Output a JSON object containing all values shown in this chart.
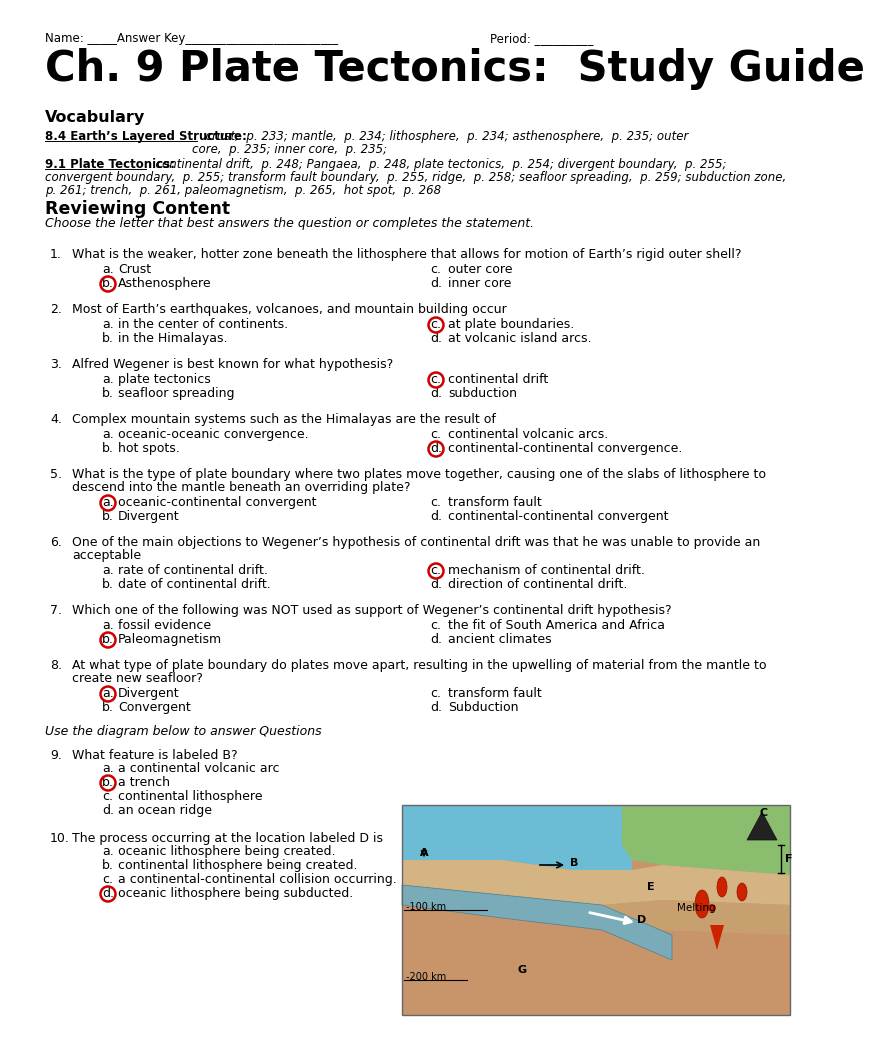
{
  "bg_color": "#ffffff",
  "title": "Ch. 9 Plate Tectonics:  Study Guide",
  "name_line_left": "Name: _____Answer Key__________________________",
  "name_line_right": "Period: __________",
  "vocab_header": "Vocabulary",
  "v1_bold": "8.4 Earth’s Layered Structure:",
  "v1_rest1": "  crust,  p. 233; mantle,  p. 234; lithosphere,  p. 234; asthenosphere,  p. 235; outer",
  "v1_rest2": "core,  p. 235; inner core,  p. 235;",
  "v2_bold": "9.1 Plate Tectonics:",
  "v2_rest1": "  continental drift,  p. 248; Pangaea,  p. 248, plate tectonics,  p. 254; divergent boundary,  p. 255;",
  "v2_rest2": "convergent boundary,  p. 255; transform fault boundary,  p. 255, ridge,  p. 258; seafloor spreading,  p. 259; subduction zone,",
  "v2_rest3": "p. 261; trench,  p. 261, paleomagnetism,  p. 265,  hot spot,  p. 268",
  "section2_header": "Reviewing Content",
  "section2_sub": "Choose the letter that best answers the question or completes the statement.",
  "questions": [
    {
      "num": "1.",
      "text": "What is the weaker, hotter zone beneath the lithosphere that allows for motion of Earth’s rigid outer shell?",
      "multiline": false,
      "answers": [
        {
          "label": "a.",
          "text": "Crust",
          "col": 0
        },
        {
          "label": "b.",
          "text": "Asthenosphere",
          "col": 0,
          "circled": true
        },
        {
          "label": "c.",
          "text": "outer core",
          "col": 1
        },
        {
          "label": "d.",
          "text": "inner core",
          "col": 1
        }
      ]
    },
    {
      "num": "2.",
      "text": "Most of Earth’s earthquakes, volcanoes, and mountain building occur",
      "multiline": false,
      "answers": [
        {
          "label": "a.",
          "text": "in the center of continents.",
          "col": 0
        },
        {
          "label": "b.",
          "text": "in the Himalayas.",
          "col": 0
        },
        {
          "label": "c.",
          "text": "at plate boundaries.",
          "col": 1,
          "circled": true
        },
        {
          "label": "d.",
          "text": "at volcanic island arcs.",
          "col": 1
        }
      ]
    },
    {
      "num": "3.",
      "text": "Alfred Wegener is best known for what hypothesis?",
      "multiline": false,
      "answers": [
        {
          "label": "a.",
          "text": "plate tectonics",
          "col": 0
        },
        {
          "label": "b.",
          "text": "seafloor spreading",
          "col": 0
        },
        {
          "label": "c.",
          "text": "continental drift",
          "col": 1,
          "circled": true
        },
        {
          "label": "d.",
          "text": "subduction",
          "col": 1
        }
      ]
    },
    {
      "num": "4.",
      "text": "Complex mountain systems such as the Himalayas are the result of",
      "multiline": false,
      "answers": [
        {
          "label": "a.",
          "text": "oceanic-oceanic convergence.",
          "col": 0
        },
        {
          "label": "b.",
          "text": "hot spots.",
          "col": 0
        },
        {
          "label": "c.",
          "text": "continental volcanic arcs.",
          "col": 1
        },
        {
          "label": "d.",
          "text": "continental-continental convergence.",
          "col": 1,
          "circled": true
        }
      ]
    },
    {
      "num": "5.",
      "text": "What is the type of plate boundary where two plates move together, causing one of the slabs of lithosphere to\n      descend into the mantle beneath an overriding plate?",
      "multiline": true,
      "answers": [
        {
          "label": "a.",
          "text": "oceanic-continental convergent",
          "col": 0,
          "circled": true
        },
        {
          "label": "b.",
          "text": "Divergent",
          "col": 0
        },
        {
          "label": "c.",
          "text": "transform fault",
          "col": 1
        },
        {
          "label": "d.",
          "text": "continental-continental convergent",
          "col": 1
        }
      ]
    },
    {
      "num": "6.",
      "text": "One of the main objections to Wegener’s hypothesis of continental drift was that he was unable to provide an\n      acceptable",
      "multiline": true,
      "answers": [
        {
          "label": "a.",
          "text": "rate of continental drift.",
          "col": 0
        },
        {
          "label": "b.",
          "text": "date of continental drift.",
          "col": 0
        },
        {
          "label": "c.",
          "text": "mechanism of continental drift.",
          "col": 1,
          "circled": true
        },
        {
          "label": "d.",
          "text": "direction of continental drift.",
          "col": 1
        }
      ]
    },
    {
      "num": "7.",
      "text": "Which one of the following was NOT used as support of Wegener’s continental drift hypothesis?",
      "multiline": false,
      "answers": [
        {
          "label": "a.",
          "text": "fossil evidence",
          "col": 0
        },
        {
          "label": "b.",
          "text": "Paleomagnetism",
          "col": 0,
          "circled": true
        },
        {
          "label": "c.",
          "text": "the fit of South America and Africa",
          "col": 1
        },
        {
          "label": "d.",
          "text": "ancient climates",
          "col": 1
        }
      ]
    },
    {
      "num": "8.",
      "text": "At what type of plate boundary do plates move apart, resulting in the upwelling of material from the mantle to\n      create new seafloor?",
      "multiline": true,
      "answers": [
        {
          "label": "a.",
          "text": "Divergent",
          "col": 0,
          "circled": true
        },
        {
          "label": "b.",
          "text": "Convergent",
          "col": 0
        },
        {
          "label": "c.",
          "text": "transform fault",
          "col": 1
        },
        {
          "label": "d.",
          "text": "Subduction",
          "col": 1
        }
      ]
    }
  ],
  "diagram_note": "Use the diagram below to answer Questions",
  "q9": {
    "num": "9.",
    "text": "What feature is labeled B?",
    "answers": [
      {
        "label": "a.",
        "text": "a continental volcanic arc"
      },
      {
        "label": "b.",
        "text": "a trench",
        "circled": true
      },
      {
        "label": "c.",
        "text": "continental lithosphere"
      },
      {
        "label": "d.",
        "text": "an ocean ridge"
      }
    ]
  },
  "q10": {
    "num": "10.",
    "text": "The process occurring at the location labeled D is",
    "answers": [
      {
        "label": "a.",
        "text": "oceanic lithosphere being created."
      },
      {
        "label": "b.",
        "text": "continental lithosphere being created."
      },
      {
        "label": "c.",
        "text": "a continental-continental collision occurring."
      },
      {
        "label": "d.",
        "text": "oceanic lithosphere being subducted.",
        "circled": true
      }
    ]
  },
  "circle_color": "#cc0000"
}
